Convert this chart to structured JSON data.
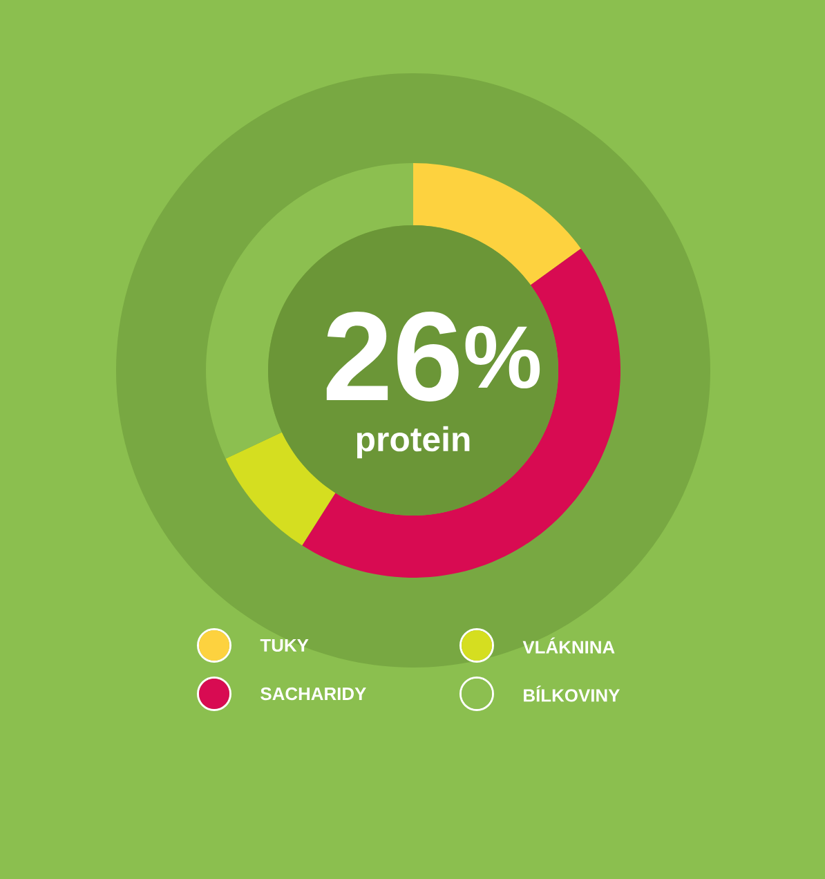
{
  "chart_data": {
    "type": "donut",
    "categories": [
      "TUKY",
      "SACHARIDY",
      "VLÁKNINA",
      "BÍLKOVINY"
    ],
    "values": [
      15,
      44,
      9,
      32
    ],
    "colors": [
      "#fdd23f",
      "#d80b52",
      "#d5de20",
      "#8cbf50"
    ],
    "annotations": [
      "26$^{%}$",
      "protein"
    ],
    "legend": "bottom"
  }
}
